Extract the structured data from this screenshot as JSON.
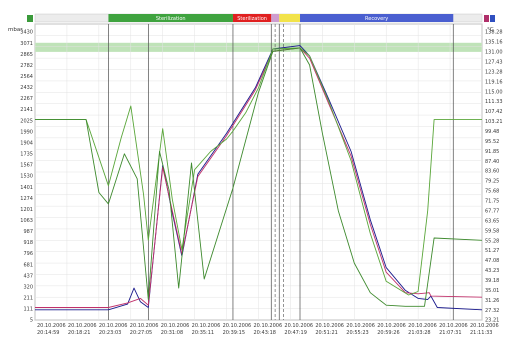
{
  "chart_data": {
    "type": "line",
    "left_axis": {
      "unit": "mbar",
      "ticks": [
        "3430",
        "3071",
        "2865",
        "2782",
        "2564",
        "2432",
        "2267",
        "2141",
        "2025",
        "1990",
        "1904",
        "1735",
        "1567",
        "1530",
        "1401",
        "1274",
        "1201",
        "1063",
        "987",
        "918",
        "796",
        "681",
        "437",
        "320",
        "211",
        "111",
        "5"
      ]
    },
    "right_axis": {
      "unit": "°C",
      "ticks": [
        "138.28",
        "135.16",
        "131.00",
        "127.43",
        "123.28",
        "119.16",
        "115.00",
        "111.33",
        "107.42",
        "103.21",
        "99.48",
        "95.52",
        "91.85",
        "87.40",
        "83.60",
        "79.25",
        "75.68",
        "71.75",
        "67.77",
        "63.65",
        "59.58",
        "55.28",
        "51.27",
        "47.08",
        "43.23",
        "39.18",
        "35.01",
        "31.26",
        "27.32",
        "23.21"
      ]
    },
    "x_ticks": [
      {
        "date": "20.10.2006",
        "time": "20:14:59"
      },
      {
        "date": "20.10.2006",
        "time": "20:18:21"
      },
      {
        "date": "20.10.2006",
        "time": "20:23:03"
      },
      {
        "date": "20.10.2006",
        "time": "20:27:05"
      },
      {
        "date": "20.10.2006",
        "time": "20:31:08"
      },
      {
        "date": "20.10.2006",
        "time": "20:35:11"
      },
      {
        "date": "20.10.2006",
        "time": "20:39:15"
      },
      {
        "date": "20.10.2006",
        "time": "20:43:18"
      },
      {
        "date": "20.10.2006",
        "time": "20:47:19"
      },
      {
        "date": "20.10.2006",
        "time": "20:51:21"
      },
      {
        "date": "20.10.2006",
        "time": "20:55:23"
      },
      {
        "date": "20.10.2006",
        "time": "20:59:26"
      },
      {
        "date": "20.10.2006",
        "time": "21:03:28"
      },
      {
        "date": "20.10.2006",
        "time": "21:07:31"
      },
      {
        "date": "20.10.2006",
        "time": "21:11:33"
      }
    ],
    "x_range": [
      0,
      14
    ],
    "y_range": [
      0,
      26
    ],
    "phases": [
      {
        "name": "Sterilization",
        "start": 2.3,
        "end": 6.2,
        "color": "#3fa33f"
      },
      {
        "name": "Sterilization",
        "start": 6.2,
        "end": 7.4,
        "color": "#e02020"
      },
      {
        "name": "",
        "start": 7.4,
        "end": 7.65,
        "color": "#cf9dd0"
      },
      {
        "name": "",
        "start": 7.65,
        "end": 8.3,
        "color": "#f2e34a"
      },
      {
        "name": "Recovery",
        "start": 8.3,
        "end": 13.1,
        "color": "#4a5fd0"
      }
    ],
    "band": {
      "min": 23.55,
      "max": 24.35,
      "color": "#bfe3b8"
    },
    "vertical_markers": [
      2.3,
      3.55,
      6.2,
      7.4,
      7.65,
      8.3,
      13.1
    ],
    "dashed_markers": [
      7.52,
      7.78
    ],
    "series": [
      {
        "color": "#1a1a8c",
        "points": [
          [
            0,
            0.9
          ],
          [
            2.3,
            0.9
          ],
          [
            2.9,
            1.4
          ],
          [
            3.1,
            2.8
          ],
          [
            3.3,
            1.6
          ],
          [
            3.55,
            1.1
          ],
          [
            4.0,
            13.6
          ],
          [
            4.3,
            9.4
          ],
          [
            4.6,
            5.6
          ],
          [
            5.1,
            12.8
          ],
          [
            6.0,
            16.4
          ],
          [
            6.9,
            20.4
          ],
          [
            7.45,
            23.8
          ],
          [
            8.3,
            24.1
          ],
          [
            8.6,
            23.2
          ],
          [
            9.2,
            19.4
          ],
          [
            9.9,
            14.8
          ],
          [
            10.5,
            8.8
          ],
          [
            11.0,
            4.6
          ],
          [
            11.6,
            2.6
          ],
          [
            12.0,
            1.9
          ],
          [
            12.3,
            1.8
          ],
          [
            12.4,
            2.1
          ],
          [
            12.6,
            1.1
          ],
          [
            14,
            0.9
          ]
        ]
      },
      {
        "color": "#c0306a",
        "points": [
          [
            0,
            1.1
          ],
          [
            2.3,
            1.1
          ],
          [
            2.9,
            1.5
          ],
          [
            3.3,
            1.9
          ],
          [
            3.55,
            1.3
          ],
          [
            4.0,
            13.4
          ],
          [
            4.3,
            9.6
          ],
          [
            4.6,
            5.8
          ],
          [
            5.1,
            12.6
          ],
          [
            6.0,
            16.2
          ],
          [
            6.9,
            20.2
          ],
          [
            7.45,
            23.6
          ],
          [
            8.3,
            23.9
          ],
          [
            8.6,
            23.0
          ],
          [
            9.2,
            19.0
          ],
          [
            9.9,
            14.4
          ],
          [
            10.5,
            8.4
          ],
          [
            11.0,
            4.2
          ],
          [
            11.6,
            2.4
          ],
          [
            12.0,
            2.3
          ],
          [
            12.35,
            2.4
          ],
          [
            12.4,
            2.1
          ],
          [
            14,
            2.0
          ]
        ]
      },
      {
        "color": "#5aa63a",
        "points": [
          [
            0,
            17.6
          ],
          [
            1.6,
            17.6
          ],
          [
            2.3,
            11.8
          ],
          [
            2.7,
            16.0
          ],
          [
            3.0,
            18.8
          ],
          [
            3.4,
            11.0
          ],
          [
            3.55,
            7.0
          ],
          [
            4.0,
            16.8
          ],
          [
            4.3,
            10.6
          ],
          [
            4.6,
            6.2
          ],
          [
            5.0,
            13.2
          ],
          [
            5.5,
            14.8
          ],
          [
            6.0,
            15.9
          ],
          [
            6.2,
            16.6
          ],
          [
            6.6,
            18.2
          ],
          [
            7.0,
            20.4
          ],
          [
            7.45,
            23.8
          ],
          [
            8.3,
            23.9
          ],
          [
            8.6,
            23.2
          ],
          [
            9.2,
            19.2
          ],
          [
            9.9,
            14.0
          ],
          [
            10.5,
            7.6
          ],
          [
            11.0,
            3.4
          ],
          [
            11.7,
            2.2
          ],
          [
            12.0,
            2.5
          ],
          [
            12.3,
            9.6
          ],
          [
            12.5,
            17.6
          ],
          [
            14,
            17.6
          ]
        ]
      },
      {
        "color": "#3e8a2e",
        "points": [
          [
            0,
            17.6
          ],
          [
            1.6,
            17.6
          ],
          [
            2.0,
            11.2
          ],
          [
            2.3,
            10.2
          ],
          [
            2.8,
            14.6
          ],
          [
            3.2,
            12.4
          ],
          [
            3.55,
            1.8
          ],
          [
            3.9,
            14.8
          ],
          [
            4.2,
            11.4
          ],
          [
            4.5,
            2.8
          ],
          [
            4.9,
            13.8
          ],
          [
            5.3,
            3.6
          ],
          [
            6.2,
            11.6
          ],
          [
            7.0,
            20.0
          ],
          [
            7.45,
            23.6
          ],
          [
            8.3,
            23.9
          ],
          [
            8.6,
            22.4
          ],
          [
            9.0,
            16.4
          ],
          [
            9.5,
            9.6
          ],
          [
            10.0,
            5.0
          ],
          [
            10.5,
            2.4
          ],
          [
            11.0,
            1.3
          ],
          [
            11.6,
            1.2
          ],
          [
            12.2,
            1.2
          ],
          [
            12.5,
            7.2
          ],
          [
            14,
            7.0
          ]
        ]
      }
    ]
  }
}
